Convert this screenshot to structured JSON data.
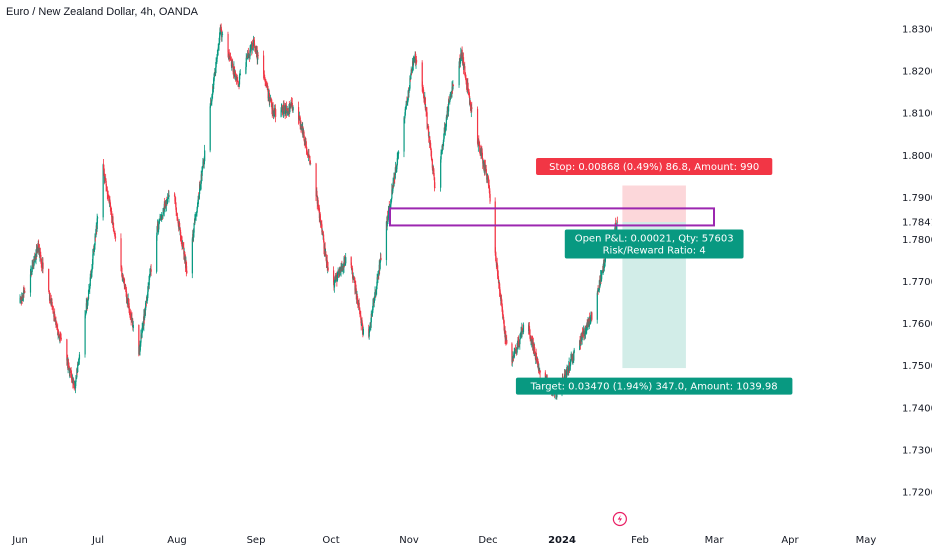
{
  "chart_data": {
    "type": "candlestick",
    "title": "Euro / New Zealand Dollar, 4h, OANDA",
    "x_ticks": [
      "Jun",
      "Jul",
      "Aug",
      "Sep",
      "Oct",
      "Nov",
      "Dec",
      "2024",
      "Feb",
      "Mar",
      "Apr",
      "May"
    ],
    "y_ticks": [
      "1.83000",
      "1.82000",
      "1.81000",
      "1.80000",
      "1.79000",
      "1.78000",
      "1.77000",
      "1.76000",
      "1.75000",
      "1.74000",
      "1.73000",
      "1.72000"
    ],
    "ylim": [
      1.7135,
      1.8365
    ],
    "current_price": {
      "label": "1.78414",
      "value": 1.78414,
      "color": "#131722"
    },
    "close_path": [
      {
        "x": "2023-06-01",
        "y": 1.765
      },
      {
        "x": "2023-06-08",
        "y": 1.778
      },
      {
        "x": "2023-06-16",
        "y": 1.757
      },
      {
        "x": "2023-06-22",
        "y": 1.745
      },
      {
        "x": "2023-06-28",
        "y": 1.77
      },
      {
        "x": "2023-07-03",
        "y": 1.797
      },
      {
        "x": "2023-07-10",
        "y": 1.773
      },
      {
        "x": "2023-07-17",
        "y": 1.753
      },
      {
        "x": "2023-07-24",
        "y": 1.782
      },
      {
        "x": "2023-07-30",
        "y": 1.793
      },
      {
        "x": "2023-08-05",
        "y": 1.772
      },
      {
        "x": "2023-08-12",
        "y": 1.801
      },
      {
        "x": "2023-08-18",
        "y": 1.83
      },
      {
        "x": "2023-08-25",
        "y": 1.817
      },
      {
        "x": "2023-08-31",
        "y": 1.827
      },
      {
        "x": "2023-09-08",
        "y": 1.81
      },
      {
        "x": "2023-09-17",
        "y": 1.812
      },
      {
        "x": "2023-09-24",
        "y": 1.795
      },
      {
        "x": "2023-10-01",
        "y": 1.768
      },
      {
        "x": "2023-10-08",
        "y": 1.777
      },
      {
        "x": "2023-10-15",
        "y": 1.754
      },
      {
        "x": "2023-10-22",
        "y": 1.78
      },
      {
        "x": "2023-10-30",
        "y": 1.808
      },
      {
        "x": "2023-11-03",
        "y": 1.824
      },
      {
        "x": "2023-11-07",
        "y": 1.813
      },
      {
        "x": "2023-11-11",
        "y": 1.791
      },
      {
        "x": "2023-11-16",
        "y": 1.812
      },
      {
        "x": "2023-11-21",
        "y": 1.824
      },
      {
        "x": "2023-11-26",
        "y": 1.806
      },
      {
        "x": "2023-12-01",
        "y": 1.794
      },
      {
        "x": "2023-12-05",
        "y": 1.772
      },
      {
        "x": "2023-12-10",
        "y": 1.749
      },
      {
        "x": "2023-12-17",
        "y": 1.761
      },
      {
        "x": "2023-12-23",
        "y": 1.748
      },
      {
        "x": "2023-12-30",
        "y": 1.743
      },
      {
        "x": "2024-01-06",
        "y": 1.753
      },
      {
        "x": "2024-01-13",
        "y": 1.762
      },
      {
        "x": "2024-01-20",
        "y": 1.78
      },
      {
        "x": "2024-01-23",
        "y": 1.784
      }
    ],
    "price_zone": {
      "from": 1.78333,
      "to": 1.78738,
      "color": "#9c27b0"
    },
    "position": {
      "entry": 1.78414,
      "stop": 1.79282,
      "target": 1.74944,
      "start_date": "2024-01-25",
      "end_date": "2024-02-19",
      "stop_label": "Stop: 0.00868 (0.49%) 86.8, Amount: 990",
      "open_label": "Open P&L: 0.00021, Qty: 57603",
      "ratio_label": "Risk/Reward Ratio: 4",
      "target_label": "Target: 0.03470 (1.94%) 347.0, Amount: 1039.98",
      "stop_color": "#f23645",
      "target_color": "#089981"
    },
    "colors": {
      "up": "#089981",
      "down": "#f23645",
      "axis_text": "#131722"
    },
    "event_icon": "lightning-bolt-icon",
    "grid": false
  }
}
